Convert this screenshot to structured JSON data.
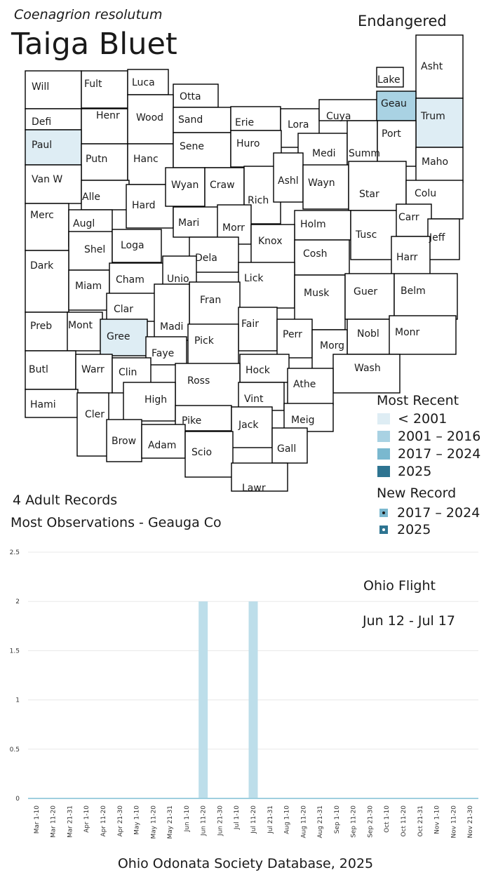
{
  "header": {
    "scientific_name": "Coenagrion resolutum",
    "common_name": "Taiga Bluet",
    "status": "Endangered"
  },
  "colors": {
    "lt_2001": "#deedf4",
    "y2001_2016": "#a9d2e3",
    "y2017_2024": "#7ab8cf",
    "y2025": "#2e7491",
    "county_outline": "#000000",
    "bar": "#bddeea",
    "baseline": "#9fcfdf",
    "grid": "#e8e8e8"
  },
  "map": {
    "counties": [
      {
        "abbr": "Will",
        "shade": "none"
      },
      {
        "abbr": "Fult",
        "shade": "none"
      },
      {
        "abbr": "Luca",
        "shade": "none"
      },
      {
        "abbr": "Otta",
        "shade": "none"
      },
      {
        "abbr": "Lake",
        "shade": "none"
      },
      {
        "abbr": "Asht",
        "shade": "none"
      },
      {
        "abbr": "Defi",
        "shade": "none"
      },
      {
        "abbr": "Henr",
        "shade": "none"
      },
      {
        "abbr": "Wood",
        "shade": "none"
      },
      {
        "abbr": "Sand",
        "shade": "none"
      },
      {
        "abbr": "Erie",
        "shade": "none"
      },
      {
        "abbr": "Lora",
        "shade": "none"
      },
      {
        "abbr": "Cuya",
        "shade": "none"
      },
      {
        "abbr": "Geau",
        "shade": "2001_2016"
      },
      {
        "abbr": "Trum",
        "shade": "lt_2001"
      },
      {
        "abbr": "Paul",
        "shade": "lt_2001"
      },
      {
        "abbr": "Putn",
        "shade": "none"
      },
      {
        "abbr": "Hanc",
        "shade": "none"
      },
      {
        "abbr": "Sene",
        "shade": "none"
      },
      {
        "abbr": "Huro",
        "shade": "none"
      },
      {
        "abbr": "Medi",
        "shade": "none"
      },
      {
        "abbr": "Summ",
        "shade": "none"
      },
      {
        "abbr": "Port",
        "shade": "none"
      },
      {
        "abbr": "Maho",
        "shade": "none"
      },
      {
        "abbr": "Van W",
        "shade": "none"
      },
      {
        "abbr": "Alle",
        "shade": "none"
      },
      {
        "abbr": "Hard",
        "shade": "none"
      },
      {
        "abbr": "Wyan",
        "shade": "none"
      },
      {
        "abbr": "Craw",
        "shade": "none"
      },
      {
        "abbr": "Rich",
        "shade": "none"
      },
      {
        "abbr": "Ashl",
        "shade": "none"
      },
      {
        "abbr": "Wayn",
        "shade": "none"
      },
      {
        "abbr": "Star",
        "shade": "none"
      },
      {
        "abbr": "Colu",
        "shade": "none"
      },
      {
        "abbr": "Merc",
        "shade": "none"
      },
      {
        "abbr": "Augl",
        "shade": "none"
      },
      {
        "abbr": "Mari",
        "shade": "none"
      },
      {
        "abbr": "Morr",
        "shade": "none"
      },
      {
        "abbr": "Holm",
        "shade": "none"
      },
      {
        "abbr": "Tusc",
        "shade": "none"
      },
      {
        "abbr": "Carr",
        "shade": "none"
      },
      {
        "abbr": "Jeff",
        "shade": "none"
      },
      {
        "abbr": "Shel",
        "shade": "none"
      },
      {
        "abbr": "Loga",
        "shade": "none"
      },
      {
        "abbr": "Knox",
        "shade": "none"
      },
      {
        "abbr": "Dela",
        "shade": "none"
      },
      {
        "abbr": "Cosh",
        "shade": "none"
      },
      {
        "abbr": "Harr",
        "shade": "none"
      },
      {
        "abbr": "Dark",
        "shade": "none"
      },
      {
        "abbr": "Miam",
        "shade": "none"
      },
      {
        "abbr": "Cham",
        "shade": "none"
      },
      {
        "abbr": "Unio",
        "shade": "none"
      },
      {
        "abbr": "Lick",
        "shade": "none"
      },
      {
        "abbr": "Musk",
        "shade": "none"
      },
      {
        "abbr": "Guer",
        "shade": "none"
      },
      {
        "abbr": "Belm",
        "shade": "none"
      },
      {
        "abbr": "Clar",
        "shade": "none"
      },
      {
        "abbr": "Fran",
        "shade": "none"
      },
      {
        "abbr": "Preb",
        "shade": "none"
      },
      {
        "abbr": "Mont",
        "shade": "none"
      },
      {
        "abbr": "Madi",
        "shade": "none"
      },
      {
        "abbr": "Fair",
        "shade": "none"
      },
      {
        "abbr": "Perr",
        "shade": "none"
      },
      {
        "abbr": "Nobl",
        "shade": "none"
      },
      {
        "abbr": "Monr",
        "shade": "none"
      },
      {
        "abbr": "Gree",
        "shade": "lt_2001"
      },
      {
        "abbr": "Pick",
        "shade": "none"
      },
      {
        "abbr": "Morg",
        "shade": "none"
      },
      {
        "abbr": "Faye",
        "shade": "none"
      },
      {
        "abbr": "Wash",
        "shade": "none"
      },
      {
        "abbr": "Butl",
        "shade": "none"
      },
      {
        "abbr": "Warr",
        "shade": "none"
      },
      {
        "abbr": "Clin",
        "shade": "none"
      },
      {
        "abbr": "Hock",
        "shade": "none"
      },
      {
        "abbr": "Ross",
        "shade": "none"
      },
      {
        "abbr": "Athe",
        "shade": "none"
      },
      {
        "abbr": "Hami",
        "shade": "none"
      },
      {
        "abbr": "High",
        "shade": "none"
      },
      {
        "abbr": "Vint",
        "shade": "none"
      },
      {
        "abbr": "Cler",
        "shade": "none"
      },
      {
        "abbr": "Meig",
        "shade": "none"
      },
      {
        "abbr": "Pike",
        "shade": "none"
      },
      {
        "abbr": "Jack",
        "shade": "none"
      },
      {
        "abbr": "Brow",
        "shade": "none"
      },
      {
        "abbr": "Adam",
        "shade": "none"
      },
      {
        "abbr": "Gall",
        "shade": "none"
      },
      {
        "abbr": "Scio",
        "shade": "none"
      },
      {
        "abbr": "Lawr",
        "shade": "none"
      }
    ]
  },
  "summary": {
    "records": "4 Adult Records",
    "most_observations": "Most Observations - Geauga Co"
  },
  "legend": {
    "most_recent_title": "Most Recent",
    "most_recent": [
      "< 2001",
      "2001 – 2016",
      "2017 – 2024",
      "2025"
    ],
    "new_record_title": "New Record",
    "new_record": [
      "2017 – 2024",
      "2025"
    ]
  },
  "flight": {
    "title": "Ohio Flight",
    "range": "Jun 12 - Jul 17"
  },
  "chart_data": {
    "type": "bar",
    "title": "",
    "xlabel": "",
    "ylabel": "",
    "ylim": [
      0,
      2.5
    ],
    "yticks": [
      "0",
      "0.5",
      "1",
      "1.5",
      "2",
      "2.5"
    ],
    "grid": true,
    "categories": [
      "Mar 1-10",
      "Mar 11-20",
      "Mar 21-31",
      "Apr 1-10",
      "Apr 11-20",
      "Apr 21-30",
      "May 1-10",
      "May 11-20",
      "May 21-31",
      "Jun 1-10",
      "Jun 11-20",
      "Jun 21-30",
      "Jul 1-10",
      "Jul 11-20",
      "Jul 21-31",
      "Aug 1-10",
      "Aug 11-20",
      "Aug 21-31",
      "Sep 1-10",
      "Sep 11-20",
      "Sep 21-30",
      "Oct 1-10",
      "Oct 11-20",
      "Oct 21-31",
      "Nov 1-10",
      "Nov 11-20",
      "Nov 21-30"
    ],
    "values": [
      0,
      0,
      0,
      0,
      0,
      0,
      0,
      0,
      0,
      0,
      2,
      0,
      0,
      2,
      0,
      0,
      0,
      0,
      0,
      0,
      0,
      0,
      0,
      0,
      0,
      0,
      0
    ]
  },
  "footer": {
    "source": "Ohio Odonata Society Database, 2025"
  }
}
